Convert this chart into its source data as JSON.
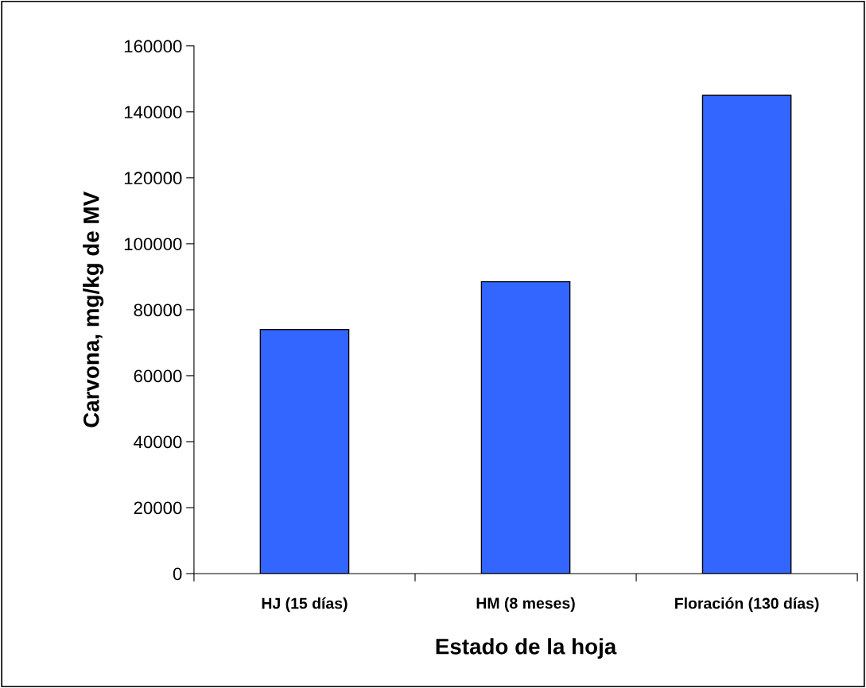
{
  "chart_data": {
    "type": "bar",
    "xlabel": "Estado de la hoja",
    "ylabel": "Carvona, mg/kg de MV",
    "categories": [
      "HJ (15 días)",
      "HM (8 meses)",
      "Floración (130 días)"
    ],
    "values": [
      74000,
      88500,
      145000
    ],
    "color": "#3366ff",
    "ylim": [
      0,
      160000
    ],
    "yticks": [
      0,
      20000,
      40000,
      60000,
      80000,
      100000,
      120000,
      140000,
      160000
    ],
    "grid": false,
    "legend": false
  }
}
